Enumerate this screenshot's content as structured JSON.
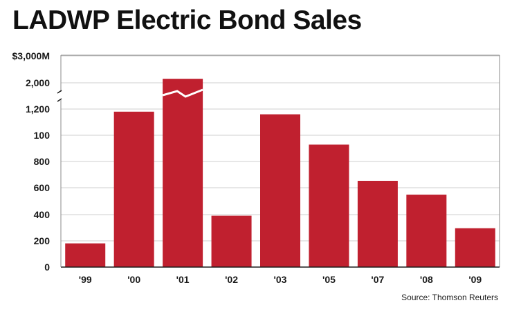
{
  "title": "LADWP Electric Bond Sales",
  "source": "Source: Thomson Reuters",
  "colors": {
    "bar": "#c0202f",
    "grid": "#cfcfcf",
    "axis": "#888888"
  },
  "chart_data": {
    "type": "bar",
    "title": "LADWP Electric Bond Sales",
    "categories": [
      "'99",
      "'00",
      "'01",
      "'02",
      "'03",
      "'05",
      "'07",
      "'08",
      "'09"
    ],
    "values": [
      180,
      1180,
      2150,
      390,
      1160,
      930,
      655,
      550,
      295
    ],
    "ytick_labels": [
      "0",
      "200",
      "400",
      "600",
      "800",
      "100",
      "1,200",
      "2,000",
      "$3,000M"
    ],
    "axis_break": "between 1,200 and 2,000",
    "grid": true,
    "xlabel": "",
    "ylabel": ""
  }
}
